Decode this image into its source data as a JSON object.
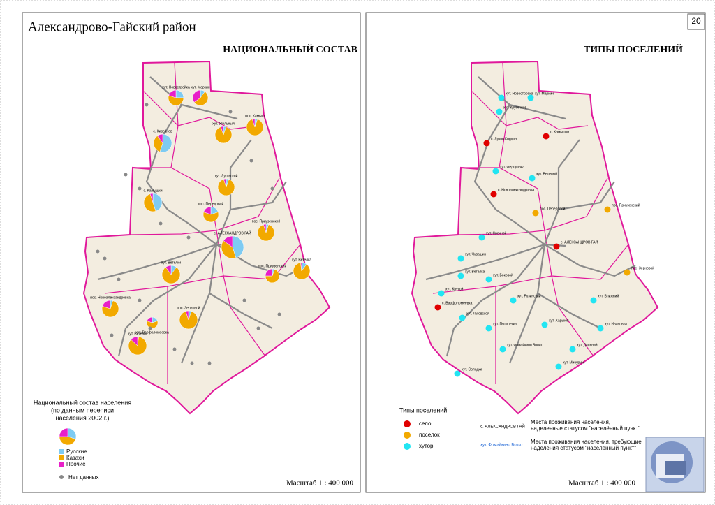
{
  "header": {
    "title": "Александрово-Гайский район",
    "page_number": "20"
  },
  "left": {
    "title": "НАЦИОНАЛЬНЫЙ СОСТАВ",
    "legend": {
      "title_lines": [
        "Национальный состав населения",
        "(по данным переписи",
        "населения 2002 г.)"
      ],
      "items": [
        {
          "label": "Русские",
          "color": "#7ecbf2"
        },
        {
          "label": "Казахи",
          "color": "#f2a900"
        },
        {
          "label": "Прочие",
          "color": "#e81fc8"
        }
      ],
      "no_data": {
        "label": "Нет данных",
        "color": "#888888"
      }
    },
    "pies": [
      {
        "name": "хут. Новостройка",
        "values": [
          25,
          55,
          20
        ]
      },
      {
        "name": "хут. Маркин",
        "values": [
          10,
          55,
          35
        ]
      },
      {
        "name": "хут. Угольный",
        "values": [
          5,
          90,
          5
        ]
      },
      {
        "name": "пос. Камыш",
        "values": [
          5,
          90,
          5
        ]
      },
      {
        "name": "с. Кирсанов",
        "values": [
          55,
          35,
          10
        ]
      },
      {
        "name": "хут. Луговской",
        "values": [
          5,
          90,
          5
        ]
      },
      {
        "name": "с. Камышки",
        "values": [
          45,
          50,
          5
        ]
      },
      {
        "name": "хут. Ветелки",
        "values": [
          10,
          80,
          10
        ]
      },
      {
        "name": "пос. Передовой",
        "values": [
          20,
          60,
          20
        ]
      },
      {
        "name": "пос. Приузенский",
        "values": [
          5,
          90,
          5
        ]
      },
      {
        "name": "с. АЛЕКСАНДРОВ ГАЙ",
        "values": [
          45,
          40,
          15
        ]
      },
      {
        "name": "пос. Приузенский",
        "values": [
          5,
          70,
          25
        ]
      },
      {
        "name": "хут. Ветелка",
        "values": [
          10,
          88,
          2
        ]
      },
      {
        "name": "пос. Новоалександровка",
        "values": [
          5,
          75,
          20
        ]
      },
      {
        "name": "хут. Варфоломеевка",
        "values": [
          20,
          60,
          20
        ]
      },
      {
        "name": "хут. Ветелки",
        "values": [
          2,
          85,
          13
        ]
      },
      {
        "name": "пос. Зерновой",
        "values": [
          5,
          90,
          5
        ]
      }
    ],
    "scale": "Масштаб 1 : 400 000"
  },
  "right": {
    "title": "ТИПЫ ПОСЕЛЕНИЙ",
    "legend": {
      "title": "Типы поселений",
      "items": [
        {
          "label": "село",
          "color": "#e00000"
        },
        {
          "label": "поселок",
          "color": "#f2a900"
        },
        {
          "label": "хутор",
          "color": "#22e5f2"
        }
      ],
      "notes": [
        {
          "sample": "с. АЛЕКСАНДРОВ ГАЙ",
          "text": "Места проживания населения, наделенные статусом \"населённый пункт\""
        },
        {
          "sample": "хут. Фомайкино Бокко",
          "text": "Места проживания населения, требующие наделения статусом \"населённый пункт\""
        }
      ]
    },
    "settlements": [
      {
        "name": "хут. Новостройка",
        "type": "хутор"
      },
      {
        "name": "хут. Маркин",
        "type": "хутор"
      },
      {
        "name": "хут. Круглянов",
        "type": "хутор"
      },
      {
        "name": "с. Камышки",
        "type": "село"
      },
      {
        "name": "с. Луков Кордон",
        "type": "село"
      },
      {
        "name": "хут. Федоровка",
        "type": "хутор"
      },
      {
        "name": "с. Новоалександровка",
        "type": "село"
      },
      {
        "name": "хут. Веселый",
        "type": "хутор"
      },
      {
        "name": "пос. Передовой",
        "type": "поселок"
      },
      {
        "name": "с. АЛЕКСАНДРОВ ГАЙ",
        "type": "село"
      },
      {
        "name": "пос. Приузенский",
        "type": "поселок"
      },
      {
        "name": "хут. Свечной",
        "type": "хутор"
      },
      {
        "name": "хут. Боковой",
        "type": "хутор"
      },
      {
        "name": "хут. Чувашин",
        "type": "хутор"
      },
      {
        "name": "хут. Ветелка",
        "type": "хутор"
      },
      {
        "name": "хут. Крутой",
        "type": "хутор"
      },
      {
        "name": "с. Варфоломеевка",
        "type": "село"
      },
      {
        "name": "хут. Луговской",
        "type": "хутор"
      },
      {
        "name": "хут. Пятилетка",
        "type": "хутор"
      },
      {
        "name": "хут. Рузинский",
        "type": "хутор"
      },
      {
        "name": "хут. Харьков",
        "type": "хутор"
      },
      {
        "name": "хут. Солодки",
        "type": "хутор"
      },
      {
        "name": "хут. Фомайкино Бокко",
        "type": "хутор"
      },
      {
        "name": "пос. Зерновой",
        "type": "поселок"
      },
      {
        "name": "хут. Ближний",
        "type": "хутор"
      },
      {
        "name": "хут. Мичурин",
        "type": "хутор"
      },
      {
        "name": "хут. Ивановка",
        "type": "хутор"
      },
      {
        "name": "хут. Дальний",
        "type": "хутор"
      }
    ],
    "scale": "Масштаб 1 : 400 000"
  }
}
